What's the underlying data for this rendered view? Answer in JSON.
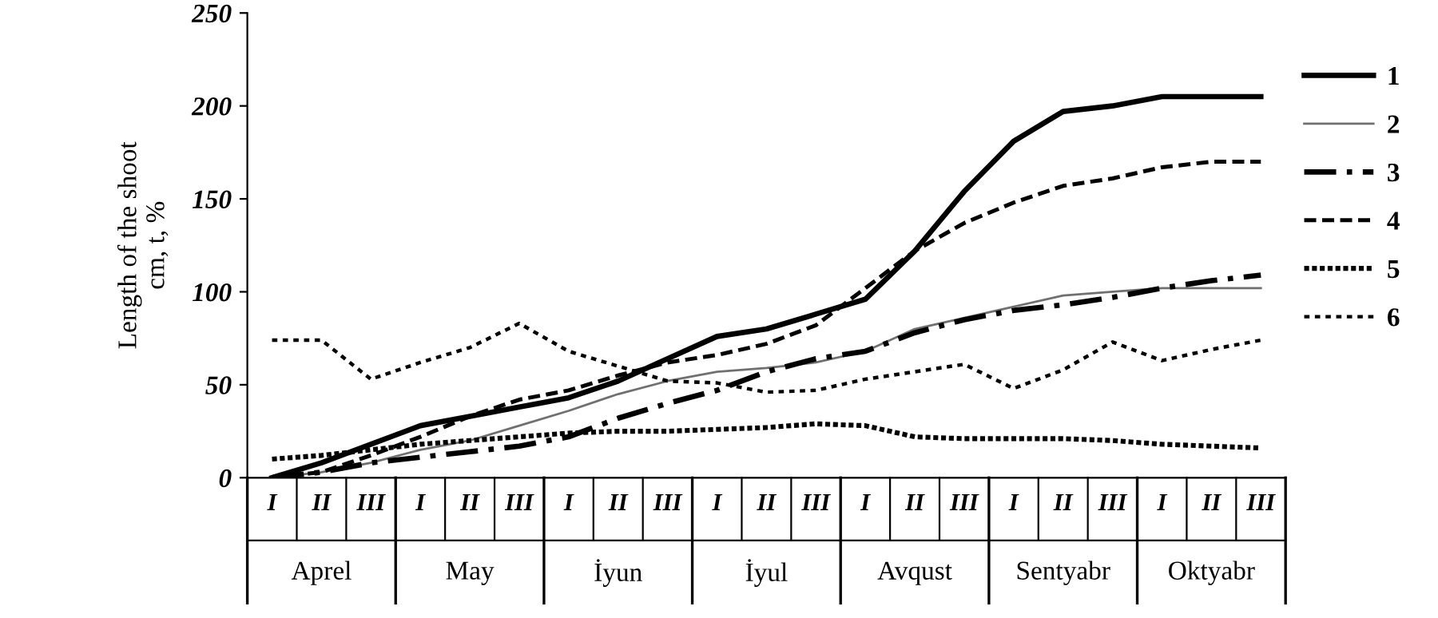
{
  "chart_data": {
    "type": "line",
    "ylabel": "Length of the shoot\ncm, t, %",
    "categories": [
      "I",
      "II",
      "III",
      "I",
      "II",
      "III",
      "I",
      "II",
      "III",
      "I",
      "II",
      "III",
      "I",
      "II",
      "III",
      "I",
      "II",
      "III",
      "I",
      "II",
      "III"
    ],
    "annotations": [
      "Aprel",
      "May",
      "İyun",
      "İyul",
      "Avqust",
      "Sentyabr",
      "Oktyabr"
    ],
    "ylim": [
      0,
      250
    ],
    "yticks": [
      0,
      50,
      100,
      150,
      200,
      250
    ],
    "grid": false,
    "legend": "right",
    "marker": "none",
    "series": [
      {
        "name": "1",
        "color": "#000000",
        "line_style": "solid",
        "values": [
          0,
          8,
          18,
          28,
          33,
          38,
          43,
          52,
          64,
          76,
          80,
          88,
          96,
          122,
          154,
          181,
          197,
          200,
          205,
          205,
          205
        ]
      },
      {
        "name": "2",
        "color": "#707070",
        "line_style": "solid",
        "values": [
          0,
          3,
          8,
          15,
          20,
          28,
          36,
          45,
          52,
          57,
          59,
          62,
          68,
          80,
          86,
          92,
          98,
          100,
          102,
          102,
          102
        ]
      },
      {
        "name": "3",
        "color": "#000000",
        "line_style": "dashdot",
        "values": [
          0,
          3,
          8,
          11,
          14,
          17,
          22,
          32,
          40,
          47,
          57,
          64,
          68,
          78,
          85,
          90,
          93,
          97,
          102,
          106,
          109
        ]
      },
      {
        "name": "4",
        "color": "#000000",
        "line_style": "dashed",
        "values": [
          0,
          3,
          12,
          22,
          33,
          42,
          47,
          55,
          62,
          66,
          72,
          82,
          102,
          122,
          137,
          148,
          157,
          161,
          167,
          170,
          170
        ]
      },
      {
        "name": "5",
        "color": "#000000",
        "line_style": "dotted",
        "values": [
          10,
          12,
          15,
          18,
          20,
          22,
          24,
          25,
          25,
          26,
          27,
          29,
          28,
          22,
          21,
          21,
          21,
          20,
          18,
          17,
          16
        ]
      },
      {
        "name": "6",
        "color": "#000000",
        "line_style": "sparse",
        "values": [
          74,
          74,
          53,
          62,
          70,
          83,
          68,
          60,
          52,
          51,
          46,
          47,
          53,
          57,
          61,
          48,
          58,
          73,
          63,
          69,
          74
        ]
      }
    ]
  }
}
